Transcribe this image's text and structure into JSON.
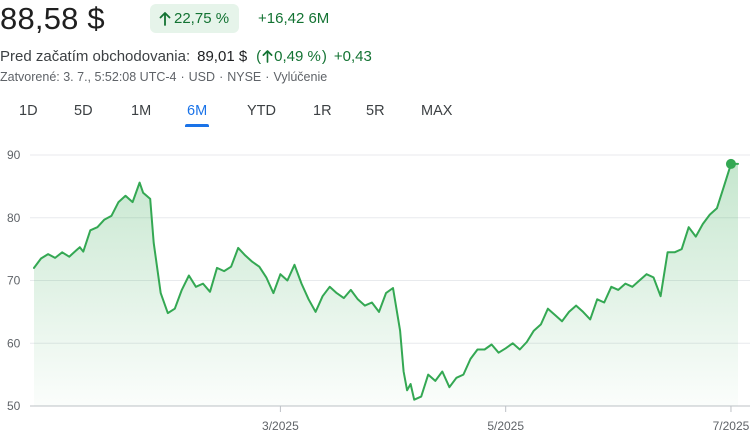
{
  "header": {
    "price": "88,58 $",
    "change_pct": "22,75 %",
    "change_abs": "+16,42 6M"
  },
  "premarket": {
    "label": "Pred začatím obchodovania:",
    "price": "89,01 $",
    "pct": "0,49 %",
    "abs": "+0,43"
  },
  "meta": {
    "closed": "Zatvorené: 3. 7., 5:52:08 UTC-4",
    "currency": "USD",
    "exchange": "NYSE",
    "disclaimer": "Vylúčenie"
  },
  "ranges": {
    "items": [
      "1D",
      "5D",
      "1M",
      "6M",
      "YTD",
      "1R",
      "5R",
      "MAX"
    ],
    "active": "6M"
  },
  "colors": {
    "line": "#34a853",
    "fill_top": "#34a853",
    "positive_text": "#137333",
    "active_tab": "#1a73e8",
    "grid": "#e8eaed"
  },
  "chart_data": {
    "type": "area",
    "xlabel": "",
    "ylabel": "",
    "ylim": [
      50,
      90
    ],
    "yticks": [
      50,
      60,
      70,
      80,
      90
    ],
    "xticks": [
      {
        "label": "3/2025",
        "t": 0.35
      },
      {
        "label": "5/2025",
        "t": 0.67
      },
      {
        "label": "7/2025",
        "t": 0.99
      }
    ],
    "grid": true,
    "x": [
      0.0,
      0.01,
      0.02,
      0.03,
      0.04,
      0.05,
      0.06,
      0.065,
      0.07,
      0.08,
      0.09,
      0.1,
      0.11,
      0.12,
      0.13,
      0.14,
      0.15,
      0.155,
      0.16,
      0.165,
      0.17,
      0.18,
      0.19,
      0.2,
      0.21,
      0.22,
      0.23,
      0.24,
      0.25,
      0.26,
      0.27,
      0.28,
      0.29,
      0.3,
      0.31,
      0.32,
      0.33,
      0.34,
      0.35,
      0.36,
      0.37,
      0.38,
      0.39,
      0.4,
      0.41,
      0.42,
      0.43,
      0.44,
      0.45,
      0.46,
      0.47,
      0.48,
      0.49,
      0.5,
      0.51,
      0.52,
      0.525,
      0.53,
      0.535,
      0.54,
      0.55,
      0.56,
      0.57,
      0.58,
      0.59,
      0.6,
      0.61,
      0.62,
      0.63,
      0.64,
      0.65,
      0.66,
      0.67,
      0.68,
      0.69,
      0.7,
      0.71,
      0.72,
      0.73,
      0.74,
      0.75,
      0.76,
      0.77,
      0.78,
      0.79,
      0.8,
      0.81,
      0.82,
      0.83,
      0.84,
      0.85,
      0.86,
      0.87,
      0.88,
      0.89,
      0.9,
      0.91,
      0.92,
      0.93,
      0.94,
      0.95,
      0.96,
      0.97,
      0.98,
      0.99,
      1.0
    ],
    "values": [
      72.0,
      73.5,
      74.2,
      73.6,
      74.5,
      73.8,
      74.8,
      75.3,
      74.6,
      78.0,
      78.5,
      79.7,
      80.3,
      82.5,
      83.5,
      82.5,
      85.6,
      84.0,
      83.5,
      83.0,
      76.0,
      68.0,
      64.8,
      65.5,
      68.5,
      70.8,
      69.0,
      69.5,
      68.2,
      72.0,
      71.5,
      72.2,
      75.2,
      74.0,
      73.0,
      72.2,
      70.5,
      68.0,
      71.0,
      70.0,
      72.5,
      69.5,
      67.0,
      65.0,
      67.5,
      69.0,
      68.0,
      67.2,
      68.5,
      67.0,
      66.0,
      66.5,
      65.0,
      68.0,
      68.8,
      62.0,
      55.5,
      52.5,
      53.5,
      51.0,
      51.5,
      55.0,
      54.0,
      55.5,
      53.0,
      54.5,
      55.0,
      57.5,
      59.0,
      59.0,
      59.8,
      58.5,
      59.2,
      60.0,
      59.0,
      60.2,
      62.0,
      63.0,
      65.5,
      64.5,
      63.5,
      65.0,
      66.0,
      65.0,
      63.8,
      67.0,
      66.5,
      69.0,
      68.5,
      69.5,
      69.0,
      70.0,
      71.0,
      70.5,
      67.5,
      74.5,
      74.5,
      75.0,
      78.5,
      77.0,
      79.0,
      80.5,
      81.5,
      85.0,
      88.58,
      88.58
    ]
  }
}
